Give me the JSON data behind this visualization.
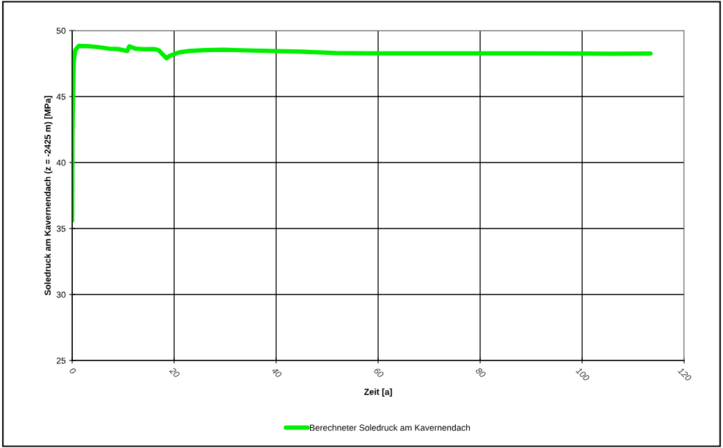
{
  "chart_data": {
    "type": "line",
    "xlabel": "Zeit [a]",
    "ylabel": "Soledruck am Kavernendach (z = -2425 m) [MPa]",
    "xlim": [
      0,
      120
    ],
    "xticks": [
      0,
      20,
      40,
      60,
      80,
      100,
      120
    ],
    "ylim": [
      25,
      50
    ],
    "yticks": [
      25,
      30,
      35,
      40,
      45,
      50
    ],
    "grid": true,
    "legend": "bottom",
    "marker": "none",
    "line_style": "solid",
    "series": [
      {
        "name": "Berechneter Soledruck am Kavernendach",
        "color": "#00ee00",
        "x": [
          0,
          0.05,
          0.15,
          0.3,
          0.6,
          1.26,
          3,
          5,
          7.2,
          9,
          10.8,
          11.2,
          12.5,
          14,
          16.2,
          17,
          18.5,
          19.2,
          19.9,
          21,
          23,
          26,
          29.8,
          34,
          38.9,
          45,
          51.7,
          60,
          70,
          80,
          90,
          100,
          106,
          113.4
        ],
        "values": [
          35.6,
          42,
          44.4,
          47.6,
          48.5,
          48.84,
          48.82,
          48.75,
          48.63,
          48.6,
          48.45,
          48.8,
          48.62,
          48.58,
          48.6,
          48.5,
          47.9,
          48.1,
          48.2,
          48.35,
          48.45,
          48.52,
          48.54,
          48.5,
          48.46,
          48.4,
          48.3,
          48.27,
          48.27,
          48.27,
          48.27,
          48.26,
          48.24,
          48.26
        ]
      }
    ]
  }
}
